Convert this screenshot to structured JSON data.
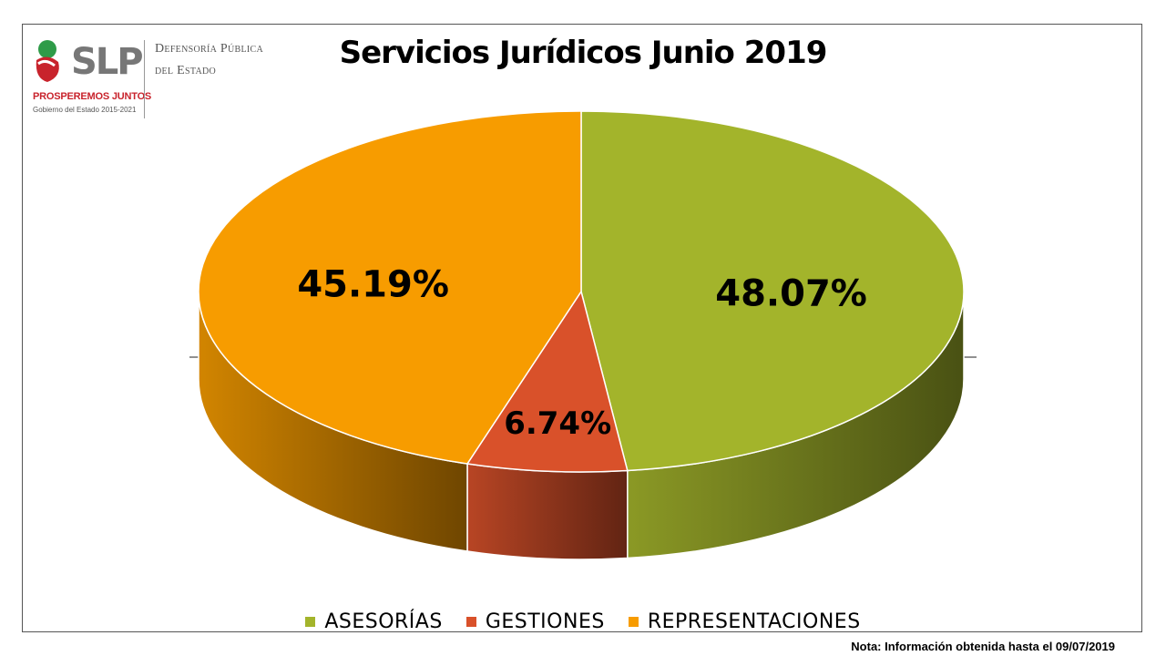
{
  "header": {
    "logo_text": "SLP",
    "logo_tagline": "PROSPEREMOS JUNTOS",
    "logo_government": "Gobierno del Estado 2015-2021",
    "organization_line1": "Defensoría Pública",
    "organization_line2": "del Estado"
  },
  "footer": {
    "note": "Nota: Información obtenida hasta el 09/07/2019"
  },
  "chart_data": {
    "type": "pie",
    "title": "Servicios Jurídicos Junio 2019",
    "categories": [
      "ASESORÍAS",
      "GESTIONES",
      "REPRESENTACIONES"
    ],
    "values": [
      48.07,
      6.74,
      45.19
    ],
    "data_labels": [
      "48.07%",
      "6.74%",
      "45.19%"
    ],
    "colors": [
      "#a3b42b",
      "#d9512a",
      "#f79c00"
    ],
    "style": "3d",
    "legend_position": "bottom"
  }
}
